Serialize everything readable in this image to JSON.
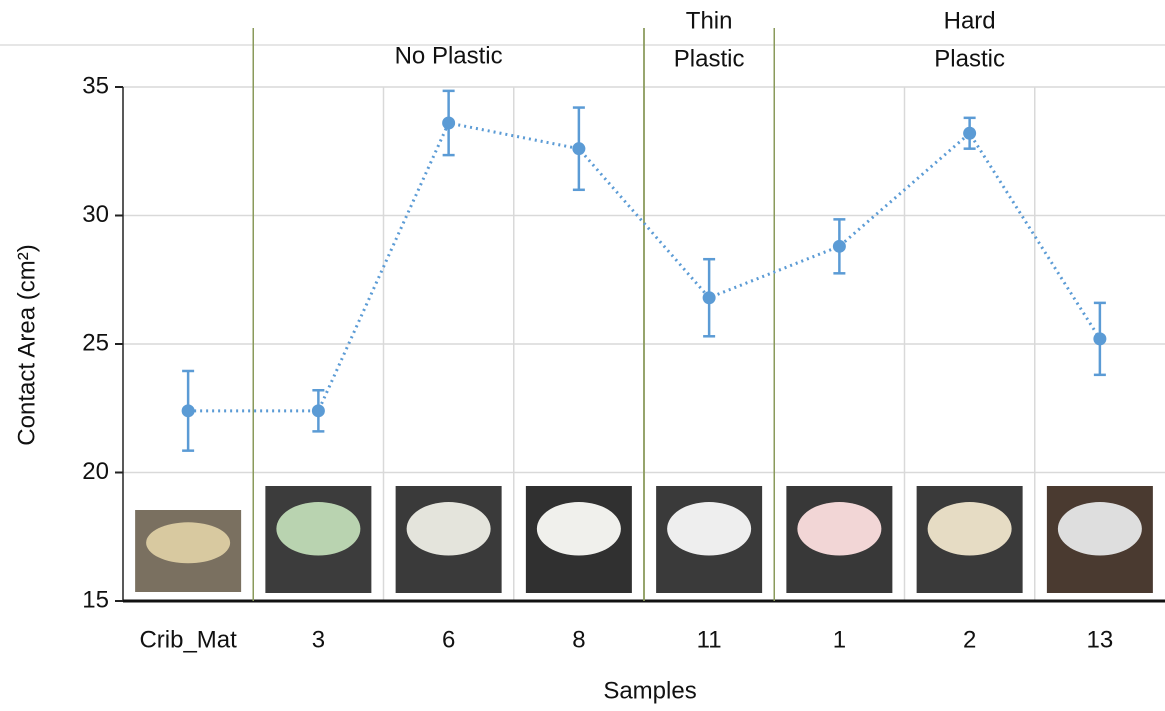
{
  "chart_data": {
    "type": "line",
    "x_label": "Samples",
    "y_label": "Contact Area (cm²)",
    "categories": [
      "Crib_Mat",
      "3",
      "6",
      "8",
      "11",
      "1",
      "2",
      "13"
    ],
    "series": [
      {
        "color": "#5b9bd5",
        "values": [
          22.4,
          22.4,
          33.6,
          32.6,
          26.8,
          28.8,
          33.2,
          25.2
        ],
        "errors": [
          1.55,
          0.8,
          1.25,
          1.6,
          1.5,
          1.05,
          0.6,
          1.4
        ]
      }
    ],
    "groups": [
      {
        "lines": [
          "No Plastic"
        ],
        "categories": [
          "3",
          "6",
          "8"
        ]
      },
      {
        "lines": [
          "Thin",
          "Plastic"
        ],
        "categories": [
          "11"
        ]
      },
      {
        "lines": [
          "Hard",
          "Plastic"
        ],
        "categories": [
          "1",
          "2",
          "13"
        ]
      }
    ],
    "ylim": [
      15,
      35
    ],
    "yticks": [
      15,
      20,
      25,
      30,
      35
    ],
    "grid": true
  }
}
